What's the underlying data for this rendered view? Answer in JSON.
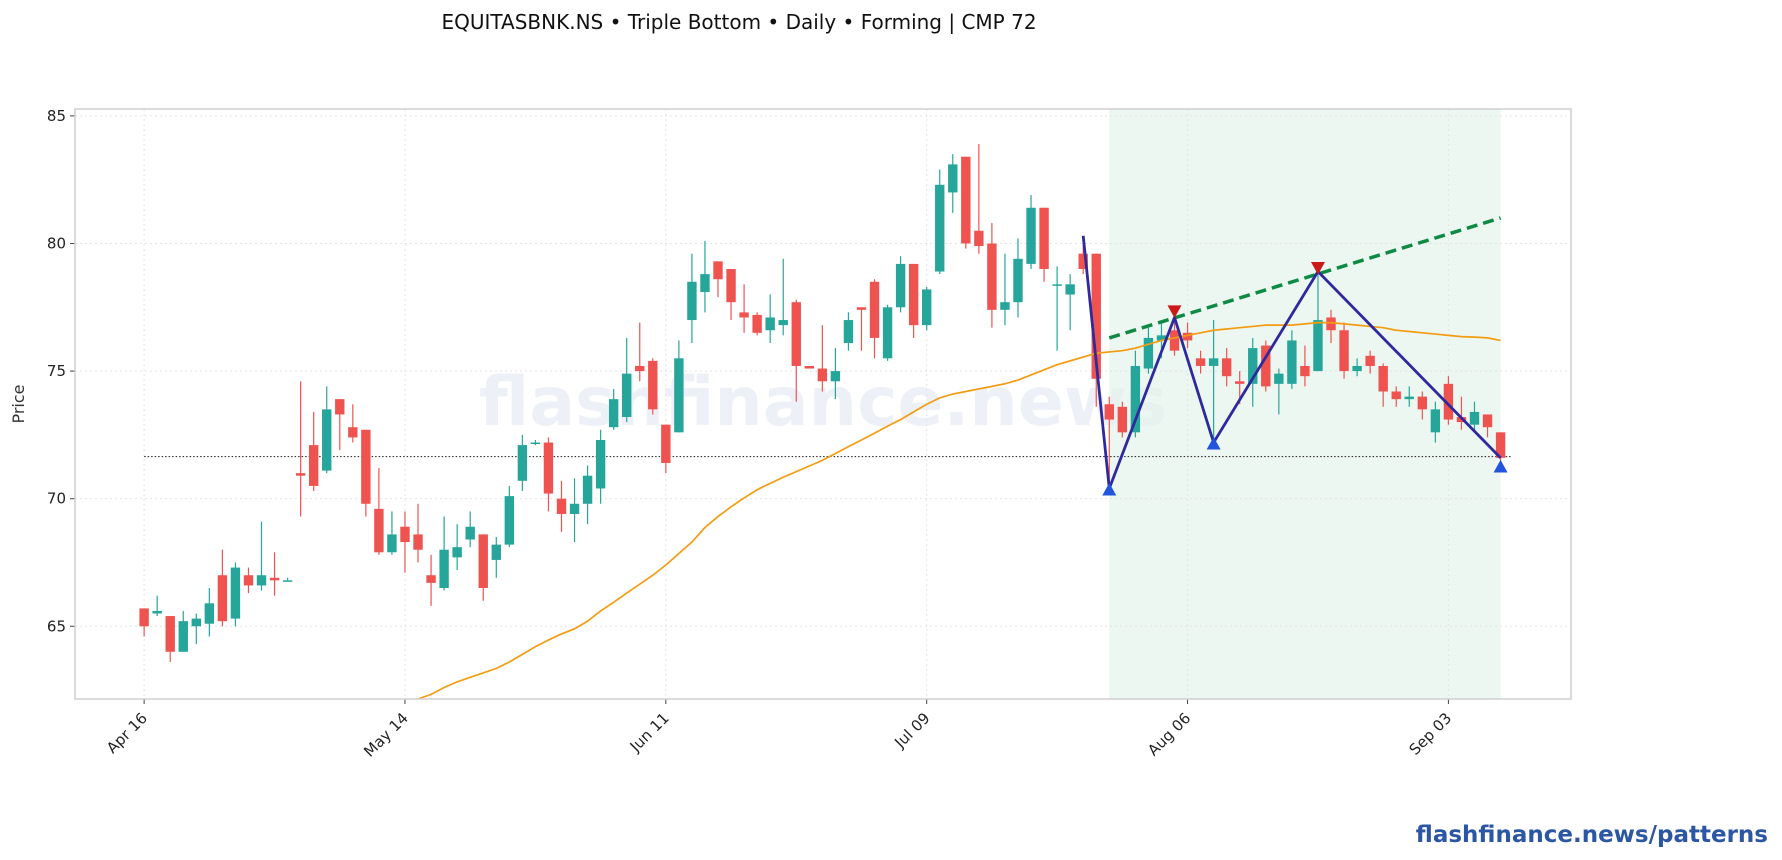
{
  "chart_data": {
    "type": "candlestick",
    "title": "EQUITASBNK.NS  •  Triple Bottom  •  Daily  •  Forming  |  CMP 72",
    "y_label": "Price",
    "watermark": "flashfinance.news",
    "footer": "flashfinance.news/patterns",
    "categories": [
      "Apr 16",
      null,
      null,
      null,
      null,
      null,
      null,
      null,
      null,
      null,
      null,
      null,
      null,
      null,
      null,
      null,
      null,
      null,
      null,
      null,
      "May 14",
      null,
      null,
      null,
      null,
      null,
      null,
      null,
      null,
      null,
      null,
      null,
      null,
      null,
      null,
      null,
      null,
      null,
      null,
      null,
      "Jun 11",
      null,
      null,
      null,
      null,
      null,
      null,
      null,
      null,
      null,
      null,
      null,
      null,
      null,
      null,
      null,
      null,
      null,
      null,
      null,
      "Jul 09",
      null,
      null,
      null,
      null,
      null,
      null,
      null,
      null,
      null,
      null,
      null,
      null,
      null,
      null,
      null,
      null,
      null,
      null,
      null,
      "Aug 06",
      null,
      null,
      null,
      null,
      null,
      null,
      null,
      null,
      null,
      null,
      null,
      null,
      null,
      null,
      null,
      null,
      null,
      null,
      null,
      "Sep 03",
      null,
      null,
      null,
      null
    ],
    "open": [
      65.7,
      65.5,
      65.4,
      64.0,
      65.0,
      65.1,
      67.0,
      65.3,
      67.0,
      66.6,
      66.9,
      66.8,
      71.0,
      72.1,
      71.1,
      73.9,
      72.8,
      72.7,
      69.6,
      67.9,
      68.9,
      68.6,
      67.0,
      66.5,
      67.7,
      68.4,
      68.6,
      67.6,
      68.2,
      70.7,
      72.2,
      72.2,
      70.0,
      69.4,
      69.8,
      70.4,
      72.8,
      73.2,
      75.2,
      75.4,
      72.9,
      72.6,
      77.0,
      78.1,
      79.3,
      79.0,
      77.3,
      77.2,
      76.6,
      76.8,
      77.7,
      75.2,
      75.1,
      74.6,
      76.1,
      77.5,
      78.5,
      75.5,
      77.5,
      79.2,
      76.8,
      78.9,
      82.0,
      83.4,
      80.5,
      80.0,
      77.4,
      77.7,
      79.2,
      81.4,
      78.4,
      78.0,
      79.6,
      79.6,
      73.7,
      73.6,
      72.6,
      75.1,
      76.2,
      76.6,
      76.5,
      75.5,
      75.2,
      75.5,
      74.6,
      74.5,
      76.0,
      74.5,
      74.5,
      75.2,
      75.0,
      77.1,
      76.6,
      75.0,
      75.6,
      75.2,
      74.2,
      73.9,
      74.0,
      72.6,
      74.5,
      73.2,
      72.9,
      73.3,
      72.6
    ],
    "high": [
      65.7,
      66.2,
      65.4,
      65.6,
      65.5,
      66.5,
      68.0,
      67.5,
      67.3,
      69.1,
      67.9,
      66.9,
      74.6,
      73.4,
      74.4,
      73.9,
      73.7,
      72.7,
      71.2,
      69.5,
      69.5,
      69.8,
      67.8,
      69.3,
      69.0,
      69.5,
      68.6,
      68.5,
      70.5,
      72.5,
      72.3,
      72.4,
      70.7,
      70.8,
      71.3,
      72.7,
      74.3,
      76.3,
      76.9,
      75.5,
      72.9,
      76.2,
      79.6,
      80.1,
      79.3,
      79.0,
      78.4,
      77.3,
      78.0,
      79.4,
      77.8,
      75.2,
      76.8,
      75.9,
      77.3,
      77.5,
      78.6,
      77.6,
      79.5,
      79.2,
      78.3,
      82.9,
      83.5,
      83.4,
      83.9,
      80.8,
      79.6,
      80.2,
      81.9,
      81.4,
      79.1,
      78.8,
      80.3,
      79.6,
      74.0,
      73.8,
      75.8,
      76.7,
      76.9,
      77.3,
      76.9,
      75.8,
      77.0,
      75.9,
      75.0,
      76.3,
      76.2,
      75.1,
      76.6,
      76.0,
      79.0,
      77.4,
      76.9,
      75.5,
      75.8,
      75.3,
      74.4,
      74.4,
      74.2,
      73.8,
      74.8,
      74.0,
      73.8,
      73.3,
      72.6
    ],
    "low": [
      64.6,
      65.4,
      63.6,
      64.0,
      64.3,
      64.6,
      65.0,
      65.0,
      66.3,
      66.4,
      66.2,
      66.8,
      69.3,
      70.3,
      71.0,
      71.9,
      72.2,
      69.3,
      67.8,
      67.8,
      67.1,
      67.5,
      65.8,
      66.4,
      67.2,
      68.1,
      66.0,
      66.9,
      68.1,
      70.3,
      72.1,
      69.5,
      68.7,
      68.3,
      69.0,
      69.8,
      72.7,
      73.0,
      74.6,
      73.3,
      71.0,
      72.6,
      76.1,
      77.3,
      77.9,
      77.0,
      76.5,
      76.4,
      76.1,
      76.4,
      73.8,
      75.1,
      74.2,
      73.9,
      75.8,
      75.8,
      75.5,
      75.4,
      77.3,
      76.3,
      76.6,
      78.8,
      81.2,
      79.8,
      79.6,
      76.7,
      76.8,
      77.1,
      79.0,
      78.5,
      75.8,
      76.6,
      78.8,
      73.6,
      70.4,
      72.4,
      72.4,
      74.9,
      75.5,
      75.6,
      75.9,
      74.9,
      72.2,
      74.4,
      73.7,
      73.6,
      74.2,
      73.3,
      74.3,
      74.4,
      75.0,
      76.1,
      74.7,
      74.8,
      74.9,
      73.6,
      73.6,
      73.6,
      73.1,
      72.2,
      72.9,
      72.7,
      72.6,
      72.4,
      71.3
    ],
    "close": [
      65.0,
      65.6,
      64.0,
      65.2,
      65.3,
      65.9,
      65.2,
      67.3,
      66.6,
      67.0,
      66.8,
      66.8,
      70.9,
      70.5,
      73.5,
      73.3,
      72.4,
      69.8,
      67.9,
      68.6,
      68.3,
      68.0,
      66.7,
      68.0,
      68.1,
      68.9,
      66.5,
      68.2,
      70.1,
      72.1,
      72.2,
      70.2,
      69.4,
      69.8,
      70.9,
      72.3,
      73.9,
      74.9,
      75.0,
      73.5,
      71.4,
      75.5,
      78.5,
      78.8,
      78.6,
      77.7,
      77.1,
      76.5,
      77.1,
      77.0,
      75.2,
      75.1,
      74.6,
      75.0,
      77.0,
      77.4,
      76.3,
      77.5,
      79.2,
      76.8,
      78.2,
      82.3,
      83.1,
      80.0,
      79.9,
      77.4,
      77.7,
      79.4,
      81.4,
      79.0,
      78.4,
      78.4,
      79.0,
      74.7,
      73.1,
      72.6,
      75.2,
      76.3,
      76.4,
      75.8,
      76.2,
      75.2,
      75.5,
      74.8,
      74.5,
      75.9,
      74.4,
      74.9,
      76.2,
      74.8,
      77.0,
      76.6,
      75.0,
      75.2,
      75.2,
      74.2,
      73.9,
      74.0,
      73.5,
      73.5,
      73.1,
      73.0,
      73.4,
      72.8,
      71.6
    ],
    "up_color": "#26a69a",
    "down_color": "#ef5350",
    "moving_average": {
      "color": "#f39c12",
      "values": [
        null,
        null,
        null,
        null,
        null,
        null,
        null,
        null,
        null,
        null,
        null,
        null,
        null,
        null,
        null,
        null,
        null,
        null,
        null,
        null,
        61.95,
        62.15,
        62.33,
        62.6,
        62.82,
        63.0,
        63.17,
        63.35,
        63.6,
        63.9,
        64.2,
        64.46,
        64.7,
        64.9,
        65.2,
        65.6,
        65.94,
        66.3,
        66.65,
        67.0,
        67.4,
        67.85,
        68.3,
        68.87,
        69.3,
        69.68,
        70.03,
        70.35,
        70.6,
        70.84,
        71.06,
        71.28,
        71.5,
        71.77,
        72.04,
        72.3,
        72.57,
        72.84,
        73.1,
        73.4,
        73.7,
        73.95,
        74.1,
        74.2,
        74.3,
        74.4,
        74.5,
        74.65,
        74.85,
        75.05,
        75.25,
        75.4,
        75.55,
        75.7,
        75.75,
        75.8,
        75.9,
        76.05,
        76.2,
        76.3,
        76.4,
        76.5,
        76.6,
        76.65,
        76.7,
        76.75,
        76.8,
        76.8,
        76.8,
        76.85,
        76.9,
        76.9,
        76.85,
        76.8,
        76.75,
        76.7,
        76.6,
        76.55,
        76.5,
        76.45,
        76.4,
        76.35,
        76.33,
        76.3,
        76.2
      ]
    },
    "support_level": {
      "value": 71.65,
      "color": "#333333"
    },
    "zigzag": {
      "color": "#2e2a9e",
      "x": [
        72,
        74,
        79,
        82,
        90,
        104
      ],
      "values": [
        80.3,
        70.4,
        77.1,
        72.2,
        78.9,
        71.6
      ]
    },
    "peaks": {
      "color": "#cc1a1a",
      "x": [
        79,
        90
      ],
      "values": [
        77.3,
        79.0
      ]
    },
    "troughs": {
      "color": "#2255dd",
      "x": [
        74,
        82,
        104
      ],
      "values": [
        70.4,
        72.2,
        71.3
      ]
    },
    "trendline": {
      "color": "#0f8a45",
      "x": [
        74,
        104
      ],
      "values": [
        76.3,
        81.0
      ]
    },
    "region_color": "#e3f2ea",
    "xlim": [
      -5.3,
      109.4
    ],
    "ylim": [
      62.15,
      85.27
    ],
    "yticks": [
      65,
      70,
      75,
      80,
      85
    ],
    "grid": true
  }
}
